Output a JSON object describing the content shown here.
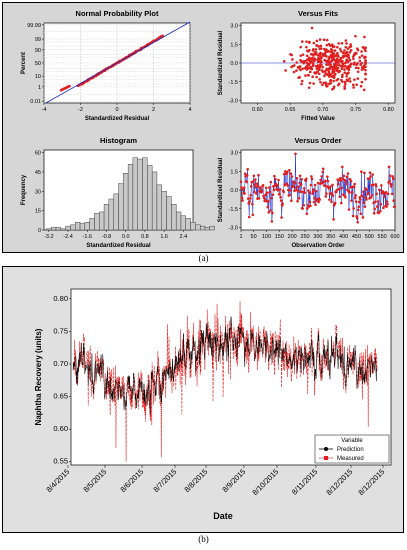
{
  "caption_a": "(a)",
  "caption_b": "(b)",
  "chart_data": [
    {
      "type": "scatter",
      "title": "Normal Probability Plot",
      "xlabel": "Standardized Residual",
      "ylabel": "Percent",
      "x_ticks": [
        "-4",
        "-2",
        "0",
        "2",
        "4"
      ],
      "y_ticks": [
        "0.01",
        "1",
        "10",
        "50",
        "90",
        "99",
        "99.99"
      ],
      "y_scale": "probability",
      "grid": true,
      "series": [
        {
          "values_range_x": [
            -3.2,
            2.6
          ],
          "color": "#e02020"
        }
      ],
      "reference_line_color": "#1a2dcc"
    },
    {
      "type": "scatter",
      "title": "Versus Fits",
      "xlabel": "Fitted Value",
      "ylabel": "Standardized Residual",
      "x_ticks": [
        "0.60",
        "0.65",
        "0.70",
        "0.75",
        "0.80"
      ],
      "y_ticks": [
        "-3.0",
        "-1.5",
        "0.0",
        "1.5",
        "3.0"
      ],
      "xlim": [
        0.575,
        0.81
      ],
      "ylim": [
        -3.2,
        3.2
      ],
      "color": "#e02020"
    },
    {
      "type": "bar",
      "title": "Histogram",
      "xlabel": "Standardized Residual",
      "ylabel": "Frequency",
      "x_ticks": [
        "-3.2",
        "-2.4",
        "-1.6",
        "-0.8",
        "0.0",
        "0.8",
        "1.6",
        "2.4"
      ],
      "y_ticks": [
        "0",
        "15",
        "30",
        "45",
        "60"
      ],
      "ylim": [
        0,
        62
      ],
      "bin_width": 0.2,
      "bin_start": -3.3,
      "values": [
        1,
        2,
        2,
        1,
        3,
        4,
        6,
        5,
        6,
        9,
        13,
        14,
        20,
        24,
        28,
        36,
        44,
        51,
        56,
        55,
        56,
        50,
        45,
        35,
        30,
        26,
        20,
        14,
        11,
        9,
        6,
        4,
        3,
        2,
        3
      ]
    },
    {
      "type": "line",
      "title": "Versus Order",
      "xlabel": "Observation Order",
      "ylabel": "Standardized Residual",
      "x_ticks": [
        "1",
        "50",
        "100",
        "150",
        "200",
        "250",
        "300",
        "350",
        "400",
        "450",
        "500",
        "550",
        "600"
      ],
      "y_ticks": [
        "-3.0",
        "-1.5",
        "0.0",
        "1.5",
        "3.0"
      ],
      "xlim": [
        1,
        600
      ],
      "ylim": [
        -3.2,
        3.2
      ],
      "line_color": "#1a2dcc",
      "marker_color": "#e02020"
    },
    {
      "type": "line",
      "xlabel": "Date",
      "ylabel": "Naphtha Recovery (units)",
      "x_ticks": [
        "8/4/2015",
        "8/5/2015",
        "8/6/2015",
        "8/7/2015",
        "8/8/2015",
        "8/9/2015",
        "8/10/2015",
        "8/11/2015",
        "8/12/2015",
        "8/12/2015"
      ],
      "y_ticks": [
        "0.55",
        "0.60",
        "0.65",
        "0.70",
        "0.75",
        "0.80"
      ],
      "ylim": [
        0.545,
        0.815
      ],
      "legend": {
        "title": "Variable",
        "position": "bottom-right",
        "entries": [
          "Prediction",
          "Measured"
        ]
      },
      "series": [
        {
          "name": "Prediction",
          "color": "#000000"
        },
        {
          "name": "Measured",
          "color": "#e02020"
        }
      ],
      "level_by_period": [
        0.7,
        0.69,
        0.65,
        0.67,
        0.71,
        0.73,
        0.74,
        0.73,
        0.71,
        0.72,
        0.7,
        0.7
      ]
    }
  ]
}
